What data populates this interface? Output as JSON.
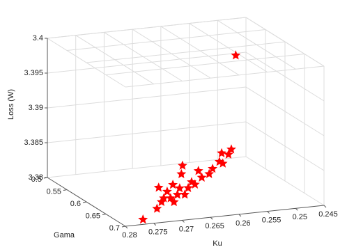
{
  "chart_data": {
    "type": "scatter3d",
    "xlabel": "Ku",
    "ylabel": "Gama",
    "zlabel": "Loss (W)",
    "xlim": [
      0.28,
      0.245
    ],
    "xticks": [
      0.28,
      0.275,
      0.27,
      0.265,
      0.26,
      0.255,
      0.25,
      0.245
    ],
    "ylim": [
      0.5,
      0.7
    ],
    "yticks": [
      0.5,
      0.55,
      0.6,
      0.65,
      0.7
    ],
    "zlim": [
      3.38,
      3.4
    ],
    "zticks": [
      3.38,
      3.385,
      3.39,
      3.395,
      3.4
    ],
    "grid": true,
    "marker": "star",
    "series": [
      {
        "color": "#ff0000",
        "x": [
          0.2769,
          0.2707,
          0.271,
          0.2692,
          0.268,
          0.2667,
          0.2665,
          0.2661,
          0.2655,
          0.2643,
          0.2637,
          0.2631,
          0.2618,
          0.2612,
          0.26,
          0.2594,
          0.2596,
          0.2584,
          0.2579,
          0.2468,
          0.2686,
          0.2674,
          0.2698,
          0.267,
          0.2682,
          0.2702,
          0.2649
        ],
        "y": [
          0.7,
          0.65,
          0.65,
          0.65,
          0.65,
          0.65,
          0.65,
          0.65,
          0.65,
          0.65,
          0.65,
          0.65,
          0.65,
          0.65,
          0.65,
          0.65,
          0.65,
          0.65,
          0.65,
          0.5,
          0.65,
          0.65,
          0.65,
          0.65,
          0.65,
          0.65,
          0.65
        ],
        "z": [
          3.3807,
          3.383,
          3.38,
          3.3823,
          3.3807,
          3.3846,
          3.3858,
          3.3816,
          3.3825,
          3.3829,
          3.3848,
          3.3838,
          3.3842,
          3.3849,
          3.3858,
          3.3855,
          3.387,
          3.3867,
          3.3874,
          3.3947,
          3.3813,
          3.3817,
          3.3814,
          3.3826,
          3.3832,
          3.3809,
          3.3833
        ]
      }
    ]
  }
}
